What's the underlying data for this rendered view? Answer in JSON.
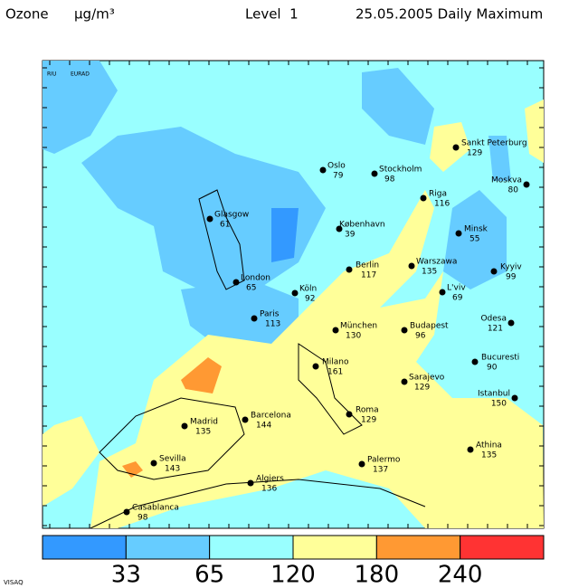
{
  "header": {
    "variable": "Ozone",
    "unit": "µg/m³",
    "level": "Level  1",
    "date_label": "25.05.2005 Daily Maximum"
  },
  "logo": {
    "left": "RIU",
    "right": "EURAD"
  },
  "cities": [
    {
      "name": "Oslo",
      "value": 79
    },
    {
      "name": "Stockholm",
      "value": 98
    },
    {
      "name": "Sankt Peterburg",
      "value": 129
    },
    {
      "name": "Moskva",
      "value": 80
    },
    {
      "name": "Riga",
      "value": 116
    },
    {
      "name": "Glasgow",
      "value": 61
    },
    {
      "name": "København",
      "value": 39
    },
    {
      "name": "Minsk",
      "value": 55
    },
    {
      "name": "London",
      "value": 65
    },
    {
      "name": "Köln",
      "value": 92
    },
    {
      "name": "Berlin",
      "value": 117
    },
    {
      "name": "Warszawa",
      "value": 135
    },
    {
      "name": "Kyyiv",
      "value": 99
    },
    {
      "name": "L'viv",
      "value": 69
    },
    {
      "name": "Paris",
      "value": 113
    },
    {
      "name": "München",
      "value": 130
    },
    {
      "name": "Budapest",
      "value": 96
    },
    {
      "name": "Odesa",
      "value": 121
    },
    {
      "name": "Milano",
      "value": 161
    },
    {
      "name": "Bucuresti",
      "value": 90
    },
    {
      "name": "Sarajevo",
      "value": 129
    },
    {
      "name": "Istanbul",
      "value": 150
    },
    {
      "name": "Roma",
      "value": 129
    },
    {
      "name": "Barcelona",
      "value": 144
    },
    {
      "name": "Madrid",
      "value": 135
    },
    {
      "name": "Sevilla",
      "value": 143
    },
    {
      "name": "Palermo",
      "value": 137
    },
    {
      "name": "Athina",
      "value": 135
    },
    {
      "name": "Algiers",
      "value": 136
    },
    {
      "name": "Casablanca",
      "value": 98
    }
  ],
  "legend": {
    "thresholds": [
      33,
      65,
      120,
      180,
      240
    ],
    "colors": [
      "#3399ff",
      "#66ccff",
      "#99ffff",
      "#ffff99",
      "#ff9933",
      "#ff3333"
    ]
  },
  "footer": "VISAQ"
}
